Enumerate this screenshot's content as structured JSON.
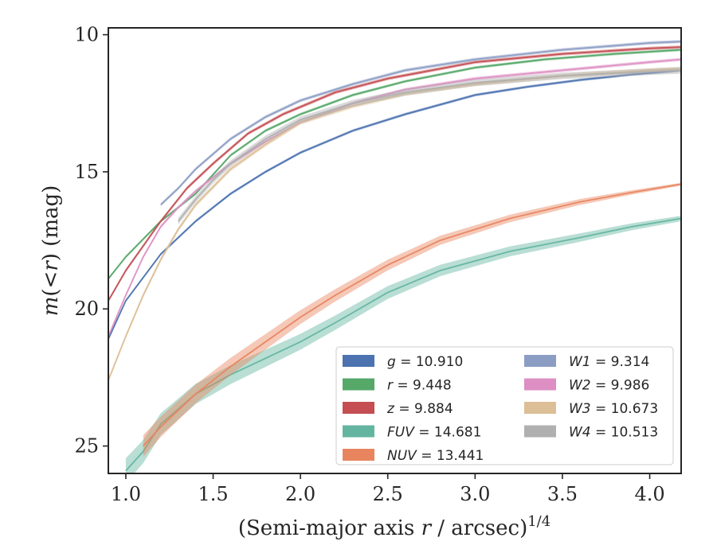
{
  "chart_data": {
    "type": "line",
    "title": "",
    "xlabel": "(Semi-major axis r / arcsec)1/4",
    "xlabel_parts": {
      "prefix": "(Semi-major axis ",
      "var": "r",
      "suffix": " / arcsec)",
      "sup": "1/4"
    },
    "ylabel": "m(<r) (mag)",
    "ylabel_parts": {
      "m": "m",
      "open": "(",
      "lt": "<",
      "r": "r",
      "close": ")",
      "unit": " (mag)"
    },
    "xlim": [
      0.9,
      4.18
    ],
    "ylim": [
      26.0,
      9.75
    ],
    "y_inverted": true,
    "x_ticks": [
      "1.0",
      "1.5",
      "2.0",
      "2.5",
      "3.0",
      "3.5",
      "4.0"
    ],
    "x_tick_values": [
      1.0,
      1.5,
      2.0,
      2.5,
      3.0,
      3.5,
      4.0
    ],
    "y_ticks": [
      "10",
      "15",
      "20",
      "25"
    ],
    "y_tick_values": [
      10,
      15,
      20,
      25
    ],
    "grid": false,
    "legend": {
      "placement": "lower-right",
      "columns": 2
    },
    "series": [
      {
        "name": "g = 10.910",
        "label_var": "g",
        "label_value": "10.910",
        "color": "#4c72b0",
        "band": 0.05,
        "x": [
          0.9,
          1.0,
          1.2,
          1.4,
          1.6,
          1.8,
          2.0,
          2.3,
          2.6,
          3.0,
          3.3,
          3.6,
          3.9,
          4.18
        ],
        "y": [
          21.1,
          19.7,
          18.0,
          16.8,
          15.8,
          15.0,
          14.3,
          13.5,
          12.9,
          12.2,
          11.9,
          11.65,
          11.45,
          11.3
        ]
      },
      {
        "name": "r = 9.448",
        "label_var": "r",
        "label_value": "9.448",
        "color": "#55a868",
        "band": 0.05,
        "x": [
          0.9,
          1.0,
          1.2,
          1.4,
          1.6,
          1.8,
          2.0,
          2.3,
          2.6,
          3.0,
          3.4,
          3.8,
          4.18
        ],
        "y": [
          18.9,
          18.1,
          16.8,
          15.8,
          14.4,
          13.5,
          12.9,
          12.2,
          11.7,
          11.2,
          10.9,
          10.7,
          10.55
        ]
      },
      {
        "name": "z = 9.884",
        "label_var": "z",
        "label_value": "9.884",
        "color": "#c44e52",
        "band": 0.06,
        "x": [
          0.9,
          1.0,
          1.2,
          1.35,
          1.5,
          1.7,
          1.9,
          2.2,
          2.5,
          3.0,
          3.5,
          4.0,
          4.18
        ],
        "y": [
          19.7,
          18.6,
          16.8,
          15.6,
          14.7,
          13.6,
          12.9,
          12.1,
          11.6,
          11.0,
          10.7,
          10.5,
          10.45
        ]
      },
      {
        "name": "FUV = 14.681",
        "label_var": "FUV",
        "label_value": "14.681",
        "color": "#64b5a0",
        "band": 0.45,
        "band_end": 0.1,
        "x": [
          1.0,
          1.1,
          1.2,
          1.4,
          1.6,
          1.8,
          2.0,
          2.2,
          2.5,
          2.8,
          3.2,
          3.6,
          3.9,
          4.18
        ],
        "y": [
          25.9,
          25.2,
          24.2,
          23.1,
          22.4,
          21.8,
          21.2,
          20.5,
          19.4,
          18.6,
          17.9,
          17.4,
          17.0,
          16.7
        ]
      },
      {
        "name": "NUV = 13.441",
        "label_var": "NUV",
        "label_value": "13.441",
        "color": "#e8855f",
        "band": 0.4,
        "band_end": 0.05,
        "x": [
          1.1,
          1.2,
          1.4,
          1.6,
          1.8,
          2.0,
          2.2,
          2.5,
          2.8,
          3.2,
          3.6,
          3.9,
          4.18
        ],
        "y": [
          25.0,
          24.3,
          23.1,
          22.1,
          21.2,
          20.3,
          19.5,
          18.4,
          17.5,
          16.7,
          16.1,
          15.75,
          15.45
        ]
      },
      {
        "name": "W1 = 9.314",
        "label_var": "W1",
        "label_value": "9.314",
        "color": "#8c9dc4",
        "band": 0.06,
        "x": [
          1.2,
          1.3,
          1.4,
          1.6,
          1.8,
          2.0,
          2.3,
          2.6,
          3.0,
          3.5,
          4.0,
          4.18
        ],
        "y": [
          16.2,
          15.6,
          14.9,
          13.8,
          13.0,
          12.4,
          11.8,
          11.3,
          10.9,
          10.55,
          10.3,
          10.25
        ]
      },
      {
        "name": "W2 = 9.986",
        "label_var": "W2",
        "label_value": "9.986",
        "color": "#dd8fc3",
        "band": 0.06,
        "x": [
          0.9,
          1.0,
          1.1,
          1.2,
          1.3,
          1.4,
          1.6,
          1.8,
          2.0,
          2.3,
          2.6,
          3.0,
          3.5,
          4.0,
          4.18
        ],
        "y": [
          21.0,
          19.5,
          18.1,
          17.0,
          16.3,
          15.7,
          14.7,
          13.9,
          13.2,
          12.5,
          12.0,
          11.6,
          11.3,
          11.0,
          10.9
        ]
      },
      {
        "name": "W3 = 10.673",
        "label_var": "W3",
        "label_value": "10.673",
        "color": "#dcbf96",
        "band": 0.08,
        "x": [
          0.9,
          1.0,
          1.1,
          1.2,
          1.3,
          1.4,
          1.6,
          1.8,
          2.0,
          2.3,
          2.6,
          3.0,
          3.5,
          4.0,
          4.18
        ],
        "y": [
          22.6,
          21.0,
          19.5,
          18.2,
          17.1,
          16.2,
          14.9,
          14.0,
          13.2,
          12.6,
          12.15,
          11.8,
          11.5,
          11.3,
          11.25
        ]
      },
      {
        "name": "W4 = 10.513",
        "label_var": "W4",
        "label_value": "10.513",
        "color": "#b0b0b0",
        "band": 0.12,
        "x": [
          1.3,
          1.4,
          1.5,
          1.6,
          1.8,
          2.0,
          2.3,
          2.6,
          3.0,
          3.5,
          4.0,
          4.18
        ],
        "y": [
          16.8,
          16.0,
          15.3,
          14.7,
          13.8,
          13.1,
          12.5,
          12.1,
          11.75,
          11.5,
          11.35,
          11.3
        ]
      }
    ]
  }
}
